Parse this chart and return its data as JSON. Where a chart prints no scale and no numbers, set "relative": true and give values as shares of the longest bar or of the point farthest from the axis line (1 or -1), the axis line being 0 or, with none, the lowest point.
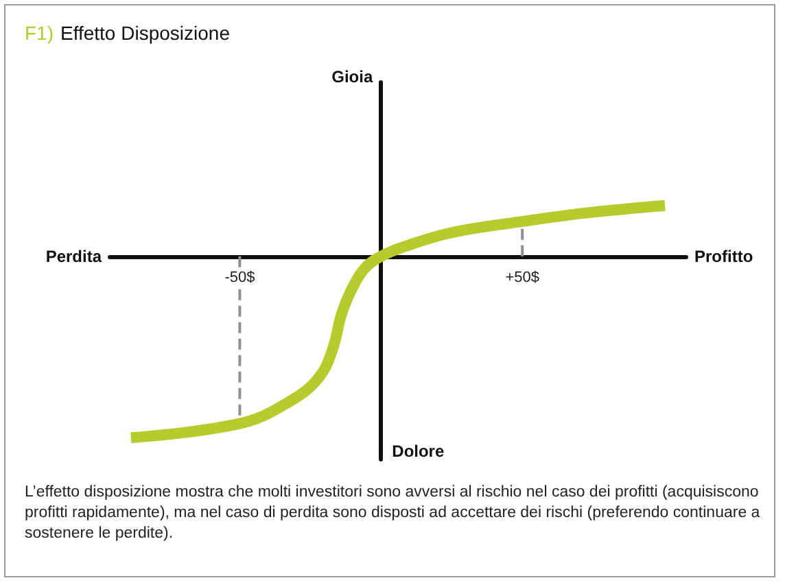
{
  "chart_data": {
    "type": "line",
    "title": "F1) Effetto Disposizione",
    "xlabel": "Profitto",
    "relative": true,
    "annotations": [
      "Perdita",
      "Dolore",
      "Gioia",
      "L’effetto disposizione mostra che molti investitori sono avversi al rischio nel caso dei profitti (acquisiscono profitti rapidamente), ma nel caso di perdita sono disposti ad accettare dei rischi (preferendo continuare a sostenere le perdite)."
    ],
    "xlim": [
      -96,
      108
    ],
    "xticks": [
      {
        "value": -50,
        "label": "-50$"
      },
      {
        "value": 50,
        "label": "+50$"
      }
    ],
    "series": [
      {
        "color": "#b8cb2d",
        "x": [
          -88.5,
          -49.5,
          -31.8,
          -22.1,
          -17.3,
          -14,
          -10.8,
          -6,
          0,
          8.5,
          24.7,
          48.9,
          73,
          100.5
        ],
        "values": [
          -1,
          -0.92,
          -0.795,
          -0.67,
          -0.52,
          -0.32,
          -0.195,
          -0.07,
          0,
          0.055,
          0.13,
          0.19,
          0.24,
          0.28
        ]
      }
    ],
    "ref_lines": [
      {
        "axis": "x",
        "value": -50,
        "color": "#8a8f99",
        "line_style": "dashed"
      },
      {
        "axis": "x",
        "value": 50,
        "color": "#8a8f99",
        "line_style": "dashed"
      }
    ],
    "grid": false
  }
}
